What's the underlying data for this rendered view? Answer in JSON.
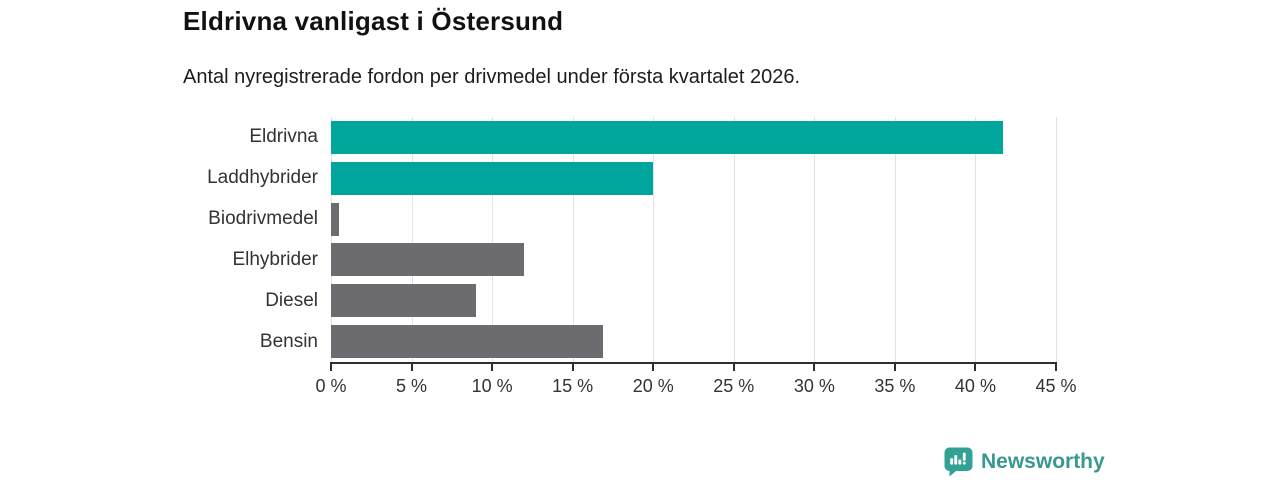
{
  "header": {
    "title": "Eldrivna vanligast i Östersund",
    "subtitle": "Antal nyregistrerade fordon per drivmedel under första kvartalet 2026."
  },
  "chart_data": {
    "type": "bar",
    "orientation": "horizontal",
    "categories": [
      "Eldrivna",
      "Laddhybrider",
      "Biodrivmedel",
      "Elhybrider",
      "Diesel",
      "Bensin"
    ],
    "values": [
      41.7,
      20,
      0.5,
      12,
      9,
      16.9
    ],
    "unit": "%",
    "bar_colors": [
      "#00a69c",
      "#00a69c",
      "#6b6b70",
      "#6b6b70",
      "#6b6b70",
      "#6b6b70"
    ],
    "xlim": [
      0,
      45
    ],
    "x_ticks": [
      0,
      5,
      10,
      15,
      20,
      25,
      30,
      35,
      40,
      45
    ],
    "x_tick_suffix": " %",
    "grid": true,
    "legend": false,
    "title": "Eldrivna vanligast i Östersund",
    "xlabel": "",
    "ylabel": ""
  },
  "footer": {
    "brand": "Newsworthy"
  },
  "colors": {
    "accent_teal": "#00a69c",
    "neutral_gray": "#6b6b70",
    "brand_teal": "#37998f",
    "axis": "#2f2f2f",
    "gridline": "#e2e2e2"
  }
}
